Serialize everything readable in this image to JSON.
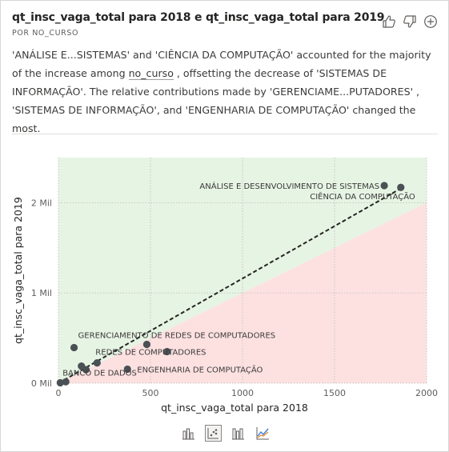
{
  "header": {
    "title": "qt_insc_vaga_total para 2018 e qt_insc_vaga_total para 2019",
    "subtitle": "POR NO_CURSO"
  },
  "narrative": {
    "part1": "'ANÁLISE E...SISTEMAS' and 'CIÊNCIA DA COMPUTAÇÃO' accounted for the majority of the increase among ",
    "field": "no_curso",
    "part2": " , offsetting the decrease of 'SISTEMAS DE INFORMAÇÃO'. The relative contributions made by 'GERENCIAME...PUTADORES' , 'SISTEMAS DE INFORMAÇÃO', and 'ENGENHARIA DE COMPUTAÇÃO' changed the most."
  },
  "colors": {
    "increase_region": "#e6f4e4",
    "decrease_region": "#fde1e1",
    "point": "#4a5054",
    "trend": "#252423"
  },
  "chart_data": {
    "type": "scatter",
    "xlabel": "qt_insc_vaga_total para 2018",
    "ylabel": "qt_insc_vaga_total para 2019",
    "xlim": [
      0,
      2000
    ],
    "ylim": [
      0,
      2500
    ],
    "x_ticks": [
      0,
      500,
      1000,
      1500,
      2000
    ],
    "x_tick_labels": [
      "0",
      "500",
      "1000",
      "1500",
      "2000"
    ],
    "y_ticks": [
      0,
      1000,
      2000
    ],
    "y_tick_labels": [
      "0 Mil",
      "1 Mil",
      "2 Mil"
    ],
    "grid": true,
    "regions": "area above the y = x diagonal shaded green (increase), below shaded red (decrease)",
    "trendline": {
      "x": [
        0,
        1870
      ],
      "y": [
        0,
        2170
      ]
    },
    "points": [
      {
        "x": 1770,
        "y": 2190,
        "label": "ANÁLISE E DESENVOLVIMENTO DE SISTEMAS"
      },
      {
        "x": 1860,
        "y": 2170,
        "label": "CIÊNCIA DA COMPUTAÇÃO"
      },
      {
        "x": 85,
        "y": 395,
        "label": "GERENCIAMENTO DE REDES DE COMPUTADORES"
      },
      {
        "x": 480,
        "y": 430,
        "label": ""
      },
      {
        "x": 590,
        "y": 350,
        "label": ""
      },
      {
        "x": 210,
        "y": 225,
        "label": "REDES DE COMPUTADORES"
      },
      {
        "x": 125,
        "y": 190,
        "label": ""
      },
      {
        "x": 150,
        "y": 150,
        "label": ""
      },
      {
        "x": 375,
        "y": 155,
        "label": "ENGENHARIA DE COMPUTAÇÃO"
      },
      {
        "x": 40,
        "y": 15,
        "label": "BANCO DE DADOS"
      },
      {
        "x": 10,
        "y": 5,
        "label": ""
      }
    ]
  },
  "icons": {
    "header": [
      "thumbs-up-icon",
      "thumbs-down-icon",
      "add-icon"
    ],
    "view_switcher": [
      "column-chart-icon",
      "scatter-chart-icon",
      "bar-chart-icon",
      "line-chart-icon"
    ]
  }
}
